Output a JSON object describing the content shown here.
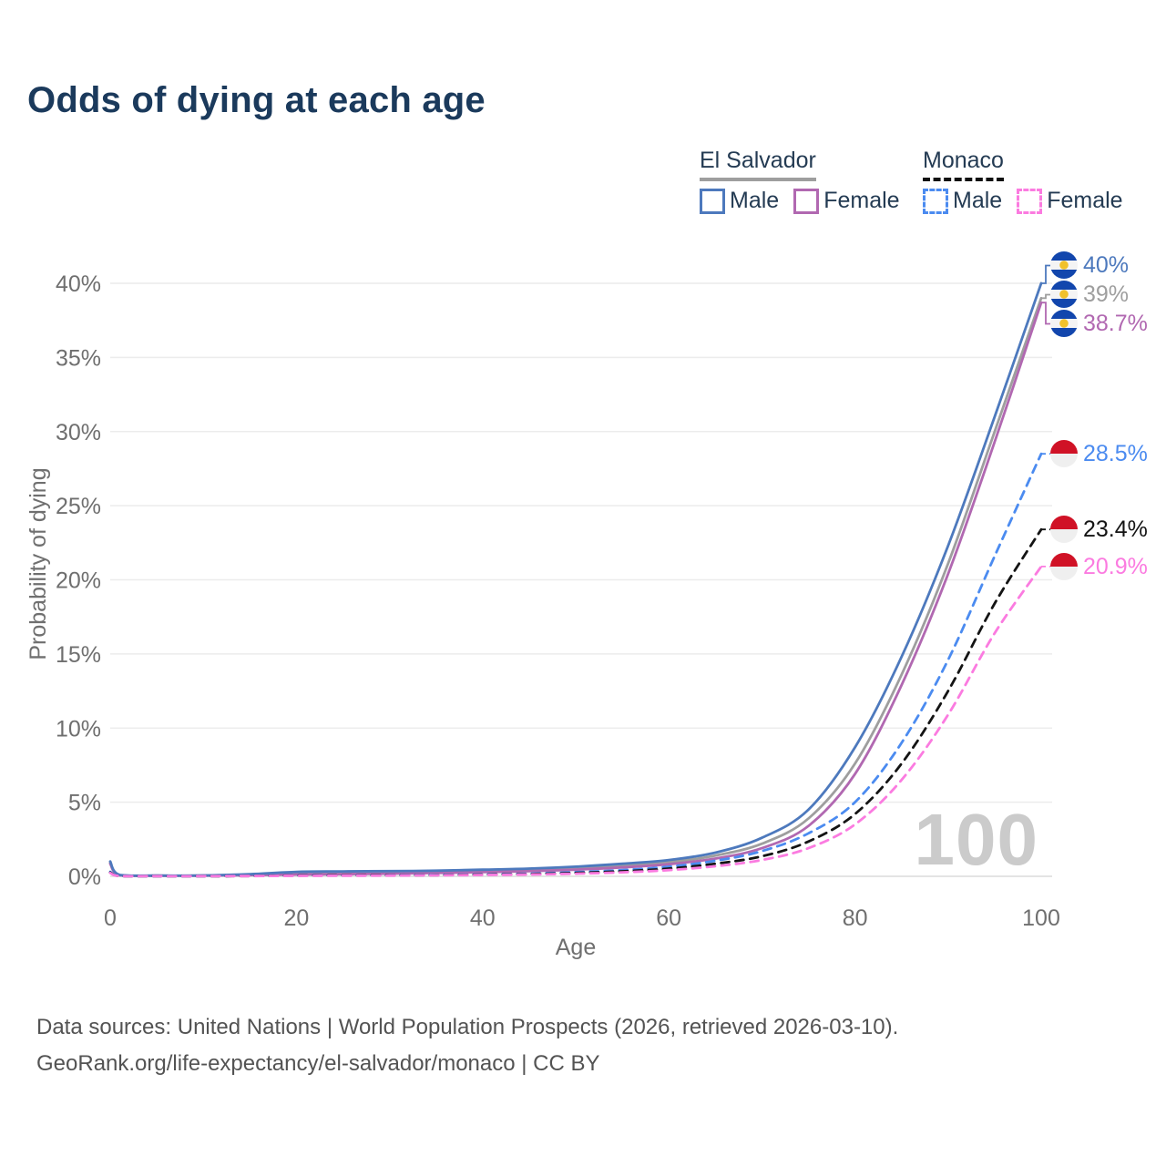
{
  "title": "Odds of dying at each age",
  "legend": {
    "groups": [
      {
        "label": "El Salvador",
        "line_style": "solid",
        "underline_color": "#9e9e9e",
        "items": [
          {
            "label": "Male",
            "color": "#4d79bd"
          },
          {
            "label": "Female",
            "color": "#b168b1"
          }
        ]
      },
      {
        "label": "Monaco",
        "line_style": "dashed",
        "underline_color": "#111111",
        "items": [
          {
            "label": "Male",
            "color": "#4b8bf0"
          },
          {
            "label": "Female",
            "color": "#fb7be0"
          }
        ]
      }
    ]
  },
  "chart_data": {
    "type": "line",
    "title": "Odds of dying at each age",
    "xlabel": "Age",
    "ylabel": "Probability of dying",
    "xlim": [
      0,
      100
    ],
    "ylim": [
      0,
      40
    ],
    "x_ticks": [
      0,
      20,
      40,
      60,
      80,
      100
    ],
    "y_ticks": [
      0,
      5,
      10,
      15,
      20,
      25,
      30,
      35,
      40
    ],
    "y_tick_suffix": "%",
    "grid": "horizontal",
    "legend_position": "top-right",
    "watermark": "100",
    "ages": [
      0,
      1,
      5,
      10,
      15,
      20,
      25,
      30,
      35,
      40,
      45,
      50,
      55,
      60,
      65,
      70,
      75,
      80,
      85,
      90,
      95,
      100
    ],
    "series": [
      {
        "name": "El Salvador Male",
        "flag": "sv",
        "color": "#4d79bd",
        "dashed": false,
        "end_label": "40%",
        "end_value": 40.0,
        "values": [
          1.0,
          0.1,
          0.05,
          0.06,
          0.15,
          0.3,
          0.33,
          0.35,
          0.38,
          0.45,
          0.52,
          0.65,
          0.85,
          1.1,
          1.6,
          2.6,
          4.5,
          8.7,
          14.8,
          22.3,
          31.0,
          40.0
        ]
      },
      {
        "name": "El Salvador Both sexes",
        "flag": "sv",
        "color": "#9e9e9e",
        "dashed": false,
        "end_label": "39%",
        "end_value": 39.0,
        "values": [
          0.92,
          0.08,
          0.04,
          0.05,
          0.11,
          0.2,
          0.23,
          0.26,
          0.29,
          0.35,
          0.42,
          0.54,
          0.72,
          0.95,
          1.4,
          2.2,
          3.9,
          7.6,
          13.6,
          21.1,
          30.0,
          39.0
        ]
      },
      {
        "name": "El Salvador Female",
        "flag": "sv",
        "color": "#b168b1",
        "dashed": false,
        "end_label": "38.7%",
        "end_value": 38.7,
        "values": [
          0.85,
          0.07,
          0.04,
          0.04,
          0.08,
          0.12,
          0.15,
          0.18,
          0.22,
          0.28,
          0.35,
          0.45,
          0.6,
          0.82,
          1.2,
          1.9,
          3.4,
          6.9,
          12.9,
          20.4,
          29.3,
          38.7
        ]
      },
      {
        "name": "Monaco Male",
        "flag": "mc",
        "color": "#4b8bf0",
        "dashed": true,
        "end_label": "28.5%",
        "end_value": 28.5,
        "values": [
          0.3,
          0.03,
          0.01,
          0.01,
          0.03,
          0.06,
          0.07,
          0.08,
          0.1,
          0.13,
          0.18,
          0.28,
          0.42,
          0.65,
          1.05,
          1.7,
          2.9,
          5.0,
          9.0,
          14.6,
          21.6,
          28.5
        ]
      },
      {
        "name": "Monaco Both sexes",
        "flag": "mc",
        "color": "#141414",
        "dashed": true,
        "end_label": "23.4%",
        "end_value": 23.4,
        "values": [
          0.26,
          0.02,
          0.01,
          0.01,
          0.02,
          0.05,
          0.06,
          0.07,
          0.08,
          0.11,
          0.15,
          0.23,
          0.34,
          0.52,
          0.85,
          1.35,
          2.35,
          4.2,
          7.6,
          12.5,
          18.4,
          23.4
        ]
      },
      {
        "name": "Monaco Female",
        "flag": "mc",
        "color": "#fb7be0",
        "dashed": true,
        "end_label": "20.9%",
        "end_value": 20.9,
        "values": [
          0.23,
          0.02,
          0.01,
          0.01,
          0.02,
          0.03,
          0.04,
          0.05,
          0.07,
          0.09,
          0.12,
          0.18,
          0.27,
          0.42,
          0.68,
          1.1,
          1.9,
          3.5,
          6.5,
          10.9,
          16.4,
          20.9
        ]
      }
    ]
  },
  "footer": {
    "line1": "Data sources: United Nations | World Population Prospects (2026, retrieved 2026-03-10).",
    "line2": "GeoRank.org/life-expectancy/el-salvador/monaco | CC BY"
  }
}
